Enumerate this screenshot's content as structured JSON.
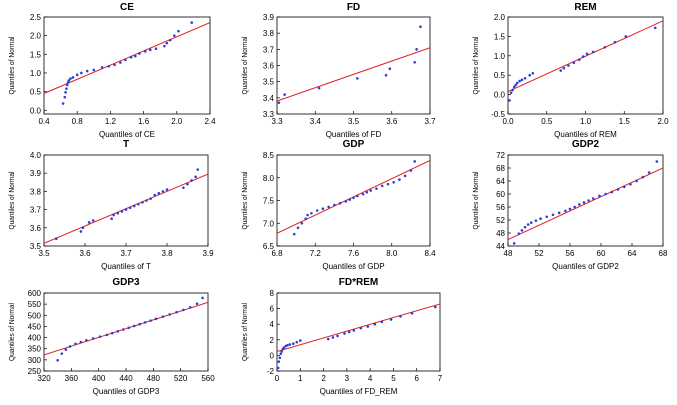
{
  "chart_data": [
    {
      "type": "scatter",
      "title": "CE",
      "xlabel": "Quantiles of CE",
      "ylabel": "Quantiles of Normal",
      "xlim": [
        0.4,
        2.4
      ],
      "ylim": [
        -0.1,
        2.5
      ],
      "xticks": [
        "0.4",
        "0.8",
        "1.2",
        "1.6",
        "2.0",
        "2.4"
      ],
      "yticks": [
        "0.0",
        "0.5",
        "1.0",
        "1.5",
        "2.0",
        "2.5"
      ],
      "line": [
        [
          0.4,
          0.45
        ],
        [
          2.4,
          2.35
        ]
      ],
      "series": [
        {
          "x": [
            0.63,
            0.65,
            0.66,
            0.67,
            0.68,
            0.69,
            0.7,
            0.72,
            0.75,
            0.8,
            0.85,
            0.92,
            1.0,
            1.1,
            1.18,
            1.25,
            1.32,
            1.38,
            1.45,
            1.5,
            1.55,
            1.62,
            1.68,
            1.75,
            1.85,
            1.88,
            1.92,
            1.97,
            2.02,
            2.18
          ],
          "y": [
            0.18,
            0.35,
            0.48,
            0.58,
            0.68,
            0.75,
            0.8,
            0.85,
            0.88,
            0.95,
            1.0,
            1.05,
            1.08,
            1.15,
            1.18,
            1.22,
            1.28,
            1.35,
            1.42,
            1.45,
            1.52,
            1.58,
            1.62,
            1.65,
            1.72,
            1.8,
            1.88,
            2.0,
            2.12,
            2.35
          ]
        }
      ]
    },
    {
      "type": "scatter",
      "title": "FD",
      "xlabel": "Quantiles of FD",
      "ylabel": "Quantiles of Normal",
      "xlim": [
        3.3,
        3.7
      ],
      "ylim": [
        3.3,
        3.9
      ],
      "xticks": [
        "3.3",
        "3.4",
        "3.5",
        "3.6",
        "3.7"
      ],
      "yticks": [
        "3.3",
        "3.4",
        "3.5",
        "3.6",
        "3.7",
        "3.8",
        "3.9"
      ],
      "line": [
        [
          3.3,
          3.38
        ],
        [
          3.7,
          3.71
        ]
      ],
      "series": [
        {
          "x": [
            3.305,
            3.32,
            3.41,
            3.51,
            3.585,
            3.595,
            3.66,
            3.665,
            3.675
          ],
          "y": [
            3.37,
            3.42,
            3.46,
            3.52,
            3.54,
            3.58,
            3.62,
            3.7,
            3.84
          ]
        }
      ]
    },
    {
      "type": "scatter",
      "title": "REM",
      "xlabel": "Quantiles of REM",
      "ylabel": "Quantiles of Normal",
      "xlim": [
        0.0,
        2.0
      ],
      "ylim": [
        -0.5,
        2.0
      ],
      "xticks": [
        "0.0",
        "0.5",
        "1.0",
        "1.5",
        "2.0"
      ],
      "yticks": [
        "-0.5",
        "0.0",
        "0.5",
        "1.0",
        "1.5",
        "2.0"
      ],
      "line": [
        [
          0.0,
          0.08
        ],
        [
          2.0,
          1.9
        ]
      ],
      "series": [
        {
          "x": [
            0.02,
            0.04,
            0.06,
            0.08,
            0.1,
            0.12,
            0.15,
            0.18,
            0.22,
            0.28,
            0.32,
            0.68,
            0.72,
            0.78,
            0.85,
            0.92,
            0.97,
            1.02,
            1.1,
            1.25,
            1.38,
            1.52,
            1.9
          ],
          "y": [
            -0.15,
            0.05,
            0.12,
            0.2,
            0.25,
            0.3,
            0.35,
            0.38,
            0.42,
            0.5,
            0.55,
            0.62,
            0.68,
            0.75,
            0.82,
            0.9,
            0.98,
            1.05,
            1.1,
            1.22,
            1.35,
            1.5,
            1.72
          ]
        }
      ]
    },
    {
      "type": "scatter",
      "title": "T",
      "xlabel": "Quantiles of T",
      "ylabel": "Quantiles of Normal",
      "xlim": [
        3.5,
        3.9
      ],
      "ylim": [
        3.5,
        4.0
      ],
      "xticks": [
        "3.5",
        "3.6",
        "3.7",
        "3.8",
        "3.9"
      ],
      "yticks": [
        "3.5",
        "3.6",
        "3.7",
        "3.8",
        "3.9",
        "4.0"
      ],
      "line": [
        [
          3.5,
          3.515
        ],
        [
          3.9,
          3.895
        ]
      ],
      "series": [
        {
          "x": [
            3.53,
            3.59,
            3.595,
            3.61,
            3.62,
            3.665,
            3.67,
            3.68,
            3.69,
            3.7,
            3.71,
            3.72,
            3.73,
            3.74,
            3.75,
            3.76,
            3.77,
            3.78,
            3.79,
            3.8,
            3.84,
            3.85,
            3.86,
            3.87,
            3.875
          ],
          "y": [
            3.54,
            3.58,
            3.6,
            3.63,
            3.64,
            3.65,
            3.67,
            3.68,
            3.69,
            3.7,
            3.71,
            3.72,
            3.73,
            3.74,
            3.75,
            3.76,
            3.78,
            3.79,
            3.8,
            3.81,
            3.82,
            3.84,
            3.86,
            3.88,
            3.92
          ]
        }
      ]
    },
    {
      "type": "scatter",
      "title": "GDP",
      "xlabel": "Quantiles of GDP",
      "ylabel": "Quantiles of Normal",
      "xlim": [
        6.8,
        8.4
      ],
      "ylim": [
        6.5,
        8.5
      ],
      "xticks": [
        "6.8",
        "7.2",
        "7.6",
        "8.0",
        "8.4"
      ],
      "yticks": [
        "6.5",
        "7.0",
        "7.5",
        "8.0",
        "8.5"
      ],
      "line": [
        [
          6.8,
          6.78
        ],
        [
          8.4,
          8.38
        ]
      ],
      "series": [
        {
          "x": [
            6.98,
            7.02,
            7.06,
            7.1,
            7.12,
            7.16,
            7.22,
            7.28,
            7.34,
            7.4,
            7.46,
            7.52,
            7.56,
            7.6,
            7.64,
            7.7,
            7.74,
            7.78,
            7.84,
            7.9,
            7.96,
            8.02,
            8.08,
            8.14,
            8.2,
            8.24
          ],
          "y": [
            6.76,
            6.9,
            7.0,
            7.1,
            7.18,
            7.22,
            7.28,
            7.32,
            7.36,
            7.4,
            7.44,
            7.48,
            7.52,
            7.56,
            7.6,
            7.64,
            7.68,
            7.72,
            7.76,
            7.82,
            7.86,
            7.9,
            7.96,
            8.04,
            8.16,
            8.36
          ]
        }
      ]
    },
    {
      "type": "scatter",
      "title": "GDP2",
      "xlabel": "Quantiles of GDP2",
      "ylabel": "Quantiles of Normal",
      "xlim": [
        48,
        68
      ],
      "ylim": [
        44,
        72
      ],
      "xticks": [
        "48",
        "52",
        "56",
        "60",
        "64",
        "68"
      ],
      "yticks": [
        "44",
        "48",
        "52",
        "56",
        "60",
        "64",
        "68",
        "72"
      ],
      "line": [
        [
          48,
          46
        ],
        [
          68,
          68
        ]
      ],
      "series": [
        {
          "x": [
            48.8,
            49.4,
            49.8,
            50.2,
            50.6,
            51.0,
            51.6,
            52.2,
            53.0,
            53.8,
            54.6,
            55.4,
            56.0,
            56.6,
            57.2,
            57.8,
            58.4,
            59.0,
            59.8,
            60.6,
            61.4,
            62.2,
            63.0,
            63.8,
            64.6,
            65.4,
            66.2,
            67.2
          ],
          "y": [
            44.8,
            47.8,
            48.8,
            49.8,
            50.6,
            51.2,
            51.8,
            52.4,
            53.0,
            53.6,
            54.2,
            54.8,
            55.4,
            56.0,
            56.8,
            57.4,
            58.0,
            58.6,
            59.4,
            60.0,
            60.6,
            61.4,
            62.2,
            63.0,
            64.0,
            65.2,
            66.6,
            70.0
          ]
        }
      ]
    },
    {
      "type": "scatter",
      "title": "GDP3",
      "xlabel": "Quantiles of GDP3",
      "ylabel": "Quantiles of Normal",
      "xlim": [
        320,
        560
      ],
      "ylim": [
        250,
        600
      ],
      "xticks": [
        "320",
        "360",
        "400",
        "440",
        "480",
        "520",
        "560"
      ],
      "yticks": [
        "250",
        "300",
        "350",
        "400",
        "450",
        "500",
        "550",
        "600"
      ],
      "line": [
        [
          320,
          322
        ],
        [
          560,
          558
        ]
      ],
      "series": [
        {
          "x": [
            340,
            346,
            352,
            358,
            366,
            374,
            382,
            392,
            402,
            412,
            420,
            428,
            436,
            444,
            452,
            460,
            468,
            476,
            484,
            494,
            504,
            514,
            524,
            534,
            544,
            552
          ],
          "y": [
            298,
            328,
            346,
            360,
            372,
            380,
            388,
            396,
            404,
            412,
            420,
            428,
            436,
            444,
            452,
            460,
            468,
            476,
            484,
            494,
            504,
            514,
            524,
            536,
            552,
            578
          ]
        }
      ]
    },
    {
      "type": "scatter",
      "title": "FD*REM",
      "xlabel": "Quantiles of FD_REM",
      "ylabel": "Quantiles of Normal",
      "xlim": [
        0,
        7
      ],
      "ylim": [
        -2,
        8
      ],
      "xticks": [
        "0",
        "1",
        "2",
        "3",
        "4",
        "5",
        "6",
        "7"
      ],
      "yticks": [
        "-2",
        "0",
        "2",
        "4",
        "6",
        "8"
      ],
      "line": [
        [
          0,
          0.5
        ],
        [
          7,
          6.6
        ]
      ],
      "series": [
        {
          "x": [
            0.05,
            0.08,
            0.12,
            0.16,
            0.2,
            0.25,
            0.3,
            0.38,
            0.45,
            0.55,
            0.7,
            0.85,
            1.0,
            2.2,
            2.4,
            2.6,
            2.9,
            3.1,
            3.3,
            3.6,
            3.9,
            4.2,
            4.5,
            4.9,
            5.3,
            5.8,
            6.8
          ],
          "y": [
            -1.6,
            -0.8,
            -0.3,
            0.2,
            0.5,
            0.8,
            1.0,
            1.2,
            1.3,
            1.4,
            1.5,
            1.7,
            1.9,
            2.1,
            2.3,
            2.5,
            2.8,
            3.0,
            3.2,
            3.5,
            3.7,
            4.0,
            4.3,
            4.6,
            5.0,
            5.4,
            6.2
          ]
        }
      ]
    }
  ]
}
